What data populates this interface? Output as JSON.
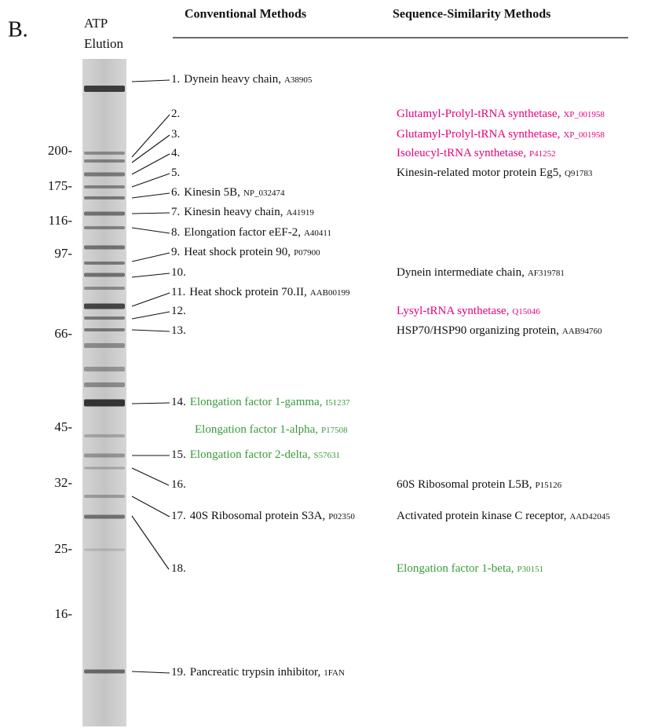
{
  "panel_label": "B.",
  "lane_label": [
    "ATP",
    "Elution"
  ],
  "headers": {
    "conventional": "Conventional Methods",
    "sequence": "Sequence-Similarity Methods"
  },
  "markers": [
    "200-",
    "175-",
    "116-",
    "97-",
    "66-",
    "45-",
    "32-",
    "25-",
    "16-"
  ],
  "entries": [
    {
      "number": "1.",
      "conventional": [
        {
          "name": "Dynein heavy chain,",
          "accession": "A38905",
          "color": "#111111"
        }
      ],
      "sequence": []
    },
    {
      "number": "2.",
      "conventional": [],
      "sequence": [
        {
          "name": "Glutamyl-Prolyl-tRNA synthetase,",
          "accession": "XP_001958",
          "color": "#e6007a"
        }
      ]
    },
    {
      "number": "3.",
      "conventional": [],
      "sequence": [
        {
          "name": "Glutamyl-Prolyl-tRNA synthetase,",
          "accession": "XP_001958",
          "color": "#e6007a"
        }
      ]
    },
    {
      "number": "4.",
      "conventional": [],
      "sequence": [
        {
          "name": "Isoleucyl-tRNA synthetase,",
          "accession": "P41252",
          "color": "#e6007a"
        }
      ]
    },
    {
      "number": "5.",
      "conventional": [],
      "sequence": [
        {
          "name": "Kinesin-related motor protein Eg5,",
          "accession": "Q91783",
          "color": "#111111"
        }
      ]
    },
    {
      "number": "6.",
      "conventional": [
        {
          "name": "Kinesin 5B,",
          "accession": "NP_032474",
          "color": "#111111"
        }
      ],
      "sequence": []
    },
    {
      "number": "7.",
      "conventional": [
        {
          "name": "Kinesin heavy chain,",
          "accession": "A41919",
          "color": "#111111"
        }
      ],
      "sequence": []
    },
    {
      "number": "8.",
      "conventional": [
        {
          "name": "Elongation factor eEF-2,",
          "accession": "A40411",
          "color": "#111111"
        }
      ],
      "sequence": []
    },
    {
      "number": "9.",
      "conventional": [
        {
          "name": "Heat shock protein 90,",
          "accession": "P07900",
          "color": "#111111"
        }
      ],
      "sequence": []
    },
    {
      "number": "10.",
      "conventional": [],
      "sequence": [
        {
          "name": "Dynein intermediate chain,",
          "accession": "AF319781",
          "color": "#111111"
        }
      ]
    },
    {
      "number": "11.",
      "conventional": [
        {
          "name": "Heat shock protein 70.II,",
          "accession": "AAB00199",
          "color": "#111111"
        }
      ],
      "sequence": []
    },
    {
      "number": "12.",
      "conventional": [],
      "sequence": [
        {
          "name": "Lysyl-tRNA synthetase,",
          "accession": "Q15046",
          "color": "#e6007a"
        }
      ]
    },
    {
      "number": "13.",
      "conventional": [],
      "sequence": [
        {
          "name": "HSP70/HSP90 organizing protein,",
          "accession": "AAB94760",
          "color": "#111111"
        }
      ]
    },
    {
      "number": "14.",
      "conventional": [
        {
          "name": "Elongation factor 1-gamma,",
          "accession": "I51237",
          "color": "#3a9a3a"
        },
        {
          "name": "Elongation factor 1-alpha,",
          "accession": "P17508",
          "color": "#3a9a3a"
        }
      ],
      "sequence": []
    },
    {
      "number": "15.",
      "conventional": [
        {
          "name": "Elongation factor 2-delta,",
          "accession": "S57631",
          "color": "#3a9a3a"
        }
      ],
      "sequence": []
    },
    {
      "number": "16.",
      "conventional": [],
      "sequence": [
        {
          "name": "60S Ribosomal protein L5B,",
          "accession": "P15126",
          "color": "#111111"
        }
      ]
    },
    {
      "number": "17.",
      "conventional": [
        {
          "name": "40S Ribosomal protein S3A,",
          "accession": "P02350",
          "color": "#111111"
        }
      ],
      "sequence": [
        {
          "name": "Activated protein kinase C receptor,",
          "accession": "AAD42045",
          "color": "#111111"
        }
      ]
    },
    {
      "number": "18.",
      "conventional": [],
      "sequence": [
        {
          "name": "Elongation factor 1-beta,",
          "accession": "P30151",
          "color": "#3a9a3a"
        }
      ]
    },
    {
      "number": "19.",
      "conventional": [
        {
          "name": "Pancreatic trypsin inhibitor,",
          "accession": "1FAN",
          "color": "#111111"
        }
      ],
      "sequence": []
    }
  ]
}
